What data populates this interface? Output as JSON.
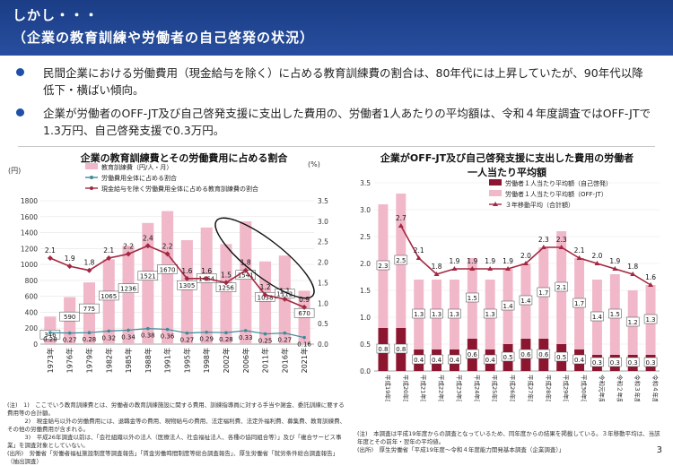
{
  "header": {
    "title_line1": "しかし・・・",
    "title_line2": "（企業の教育訓練や労働者の自己啓発の状況）"
  },
  "bullets": [
    "民間企業における労働費用（現金給与を除く）に占める教育訓練費の割合は、80年代には上昇していたが、90年代以降低下・横ばい傾向。",
    "企業が労働者のOFF-JT及び自己啓発支援に支出した費用の、労働者1人あたりの平均額は、令和４年度調査ではOFF-JTで1.3万円、自己啓発支援で0.3万円。"
  ],
  "chart_data": [
    {
      "type": "bar",
      "title": "企業の教育訓練費とその労働費用に占める割合",
      "y_left_label": "(円)",
      "y_right_label": "(%)",
      "ylim": [
        0,
        1800
      ],
      "y2lim": [
        0,
        3.5
      ],
      "left_ticks": [
        0,
        200,
        400,
        600,
        800,
        1000,
        1200,
        1400,
        1600,
        1800
      ],
      "right_ticks": [
        0,
        0.5,
        1.0,
        1.5,
        2.0,
        2.5,
        3.0,
        3.5
      ],
      "categories": [
        "1973年",
        "1976年",
        "1979年",
        "1982年",
        "1985年",
        "1988年",
        "1991年",
        "1995年",
        "1998年",
        "2002年",
        "2006年",
        "2011年",
        "2016年",
        "2021年"
      ],
      "legend": [
        "教育訓練費（円/人・月）",
        "労働費用全体に占める割合",
        "現金給与を除く労働費用全体に占める教育訓練費の割合"
      ],
      "series": [
        {
          "name": "教育訓練費（円/人・月）",
          "values": [
            346,
            590,
            775,
            1065,
            1236,
            1521,
            1670,
            1305,
            1464,
            1256,
            1541,
            1038,
            1112,
            670
          ]
        },
        {
          "name": "労働費用全体に占める割合",
          "values": [
            0.28,
            0.27,
            0.28,
            0.32,
            0.34,
            0.38,
            0.36,
            0.27,
            0.29,
            0.28,
            0.33,
            0.25,
            0.27,
            0.16
          ]
        },
        {
          "name": "現金給与を除く労働費用全体に占める教育訓練費の割合",
          "values": [
            2.1,
            1.9,
            1.8,
            2.1,
            2.2,
            2.4,
            2.2,
            1.6,
            1.6,
            1.5,
            1.8,
            1.2,
            1.1,
            0.9
          ]
        }
      ],
      "bar_labels": [
        "346",
        "590",
        "775",
        "1065",
        "1236",
        "1521",
        "1670",
        "1305",
        "1464",
        "1256",
        "1541",
        "1038",
        "1112",
        "670"
      ],
      "rate_labels": [
        "0.28",
        "0.27",
        "0.28",
        "0.32",
        "0.34",
        "0.38",
        "0.36",
        "0.27",
        "0.29",
        "0.28",
        "0.33",
        "0.25",
        "0.27",
        "0.16"
      ],
      "ratio_labels": [
        "2.1",
        "1.9",
        "1.8",
        "2.1",
        "2.2",
        "2.4",
        "2.2",
        "1.6",
        "1.6",
        "1.5",
        "1.8",
        "1.2",
        "1.1",
        "0.9"
      ]
    },
    {
      "type": "bar",
      "title": "企業がOFF-JT及び自己啓発支援に支出した費用の労働者一人当たり平均額",
      "ylim": [
        0,
        3.5
      ],
      "ticks": [
        0,
        0.5,
        1.0,
        1.5,
        2.0,
        2.5,
        3.0,
        3.5
      ],
      "categories": [
        "平成19年度調査",
        "平成20年度調査",
        "平成21年度調査",
        "平成22年度調査",
        "平成23年度調査",
        "平成24年度調査",
        "平成25年度調査",
        "平成26年度調査",
        "平成27年度調査",
        "平成28年度調査",
        "平成29年度調査",
        "平成30年度調査",
        "令和元年度調査",
        "令和２年度調査",
        "令和３年度調査",
        "令和４年度調査"
      ],
      "legend": [
        "労働者１人当たり平均額（自己啓発）",
        "労働者１人当たり平均額（OFF-JT）",
        "３年移動平均（合計額）"
      ],
      "series": [
        {
          "name": "労働者１人当たり平均額（自己啓発）",
          "values": [
            0.8,
            0.8,
            0.4,
            0.4,
            0.4,
            0.6,
            0.4,
            0.5,
            0.6,
            0.6,
            0.5,
            0.4,
            0.3,
            0.3,
            0.3,
            0.3
          ]
        },
        {
          "name": "労働者１人当たり平均額（OFF-JT）",
          "values": [
            2.3,
            2.5,
            1.3,
            1.3,
            1.3,
            1.5,
            1.3,
            1.4,
            1.4,
            1.7,
            2.1,
            1.7,
            1.4,
            1.5,
            1.2,
            1.3
          ]
        },
        {
          "name": "３年移動平均（合計額）",
          "values": [
            null,
            2.7,
            2.1,
            1.8,
            1.9,
            1.9,
            1.9,
            1.9,
            2.0,
            2.3,
            2.3,
            2.1,
            2.0,
            1.9,
            1.8,
            1.6
          ]
        }
      ],
      "ma_labels": [
        "",
        "2.7",
        "2.1",
        "1.8",
        "1.9",
        "1.9",
        "1.9",
        "1.9",
        "2.0",
        "2.3",
        "2.3",
        "2.1",
        "2.0",
        "1.9",
        "1.8",
        "1.6"
      ]
    }
  ],
  "notes_left": [
    "(注)　1)　ここでいう教育訓練費とは、労働者の教育訓練施設に関する費用、訓練指導員に対する手当や謝金、委託訓練に要する費用等の合計額。",
    "　　　2)　現金給与以外の労働費用には、退職金等の費用、現物給与の費用、法定福利費、法定外福利費、募集費、教育訓練費、その他の労働費用が含まれる。",
    "　　　3)　平成26年調査以前は、「会社組織以外の法人（医療法人、社会福祉法人、各種の協同組合等）」及び「複合サービス事業」を調査対象としていない。",
    "(出所)　労働省「労働者福祉施設制度等調査報告」「賃金労働時間制度等総合調査報告」、厚生労働省「就労条件総合調査報告」（抽出調査）"
  ],
  "notes_right": [
    "(注)　本調査は平成19年度からの調査となっているため、同年度からの結果を掲載している。３年移動平均は、当該年度とその前年・翌年の平均値。",
    "(出所)　厚生労働省「平成19年度〜令和４年度能力開発基本調査（企業調査）」"
  ],
  "page_number": "3",
  "colors": {
    "header": "#1b3d86",
    "bar_pink": "#f0b8c8",
    "line_red": "#a32741",
    "line_teal": "#3d8a99",
    "dark_red": "#8c1530"
  }
}
